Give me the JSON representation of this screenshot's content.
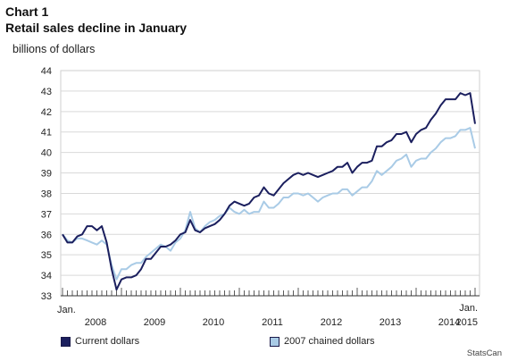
{
  "chart_data": {
    "type": "line",
    "title": "Chart 1",
    "subtitle": "Retail sales decline in January",
    "ylabel": "billions of dollars",
    "xlabel": "",
    "ylim": [
      33,
      44
    ],
    "yticks": [
      33,
      34,
      35,
      36,
      37,
      38,
      39,
      40,
      41,
      42,
      43,
      44
    ],
    "start_label": "Jan.",
    "end_label": "Jan.",
    "year_labels": [
      "2008",
      "2009",
      "2010",
      "2011",
      "2012",
      "2013",
      "2014",
      "2015"
    ],
    "grid": true,
    "legend_position": "bottom",
    "series": [
      {
        "name": "Current dollars",
        "color": "#1b1f5e",
        "values": [
          36.0,
          35.6,
          35.6,
          35.9,
          36.0,
          36.4,
          36.4,
          36.2,
          36.4,
          35.6,
          34.3,
          33.3,
          33.8,
          33.9,
          33.9,
          34.0,
          34.3,
          34.8,
          34.8,
          35.1,
          35.4,
          35.4,
          35.5,
          35.7,
          36.0,
          36.1,
          36.7,
          36.2,
          36.1,
          36.3,
          36.4,
          36.5,
          36.7,
          37.0,
          37.4,
          37.6,
          37.5,
          37.4,
          37.5,
          37.8,
          37.9,
          38.3,
          38.0,
          37.9,
          38.2,
          38.5,
          38.7,
          38.9,
          39.0,
          38.9,
          39.0,
          38.9,
          38.8,
          38.9,
          39.0,
          39.1,
          39.3,
          39.3,
          39.5,
          39.0,
          39.3,
          39.5,
          39.5,
          39.6,
          40.3,
          40.3,
          40.5,
          40.6,
          40.9,
          40.9,
          41.0,
          40.5,
          40.9,
          41.1,
          41.2,
          41.6,
          41.9,
          42.3,
          42.6,
          42.6,
          42.6,
          42.9,
          42.8,
          42.9,
          41.4
        ],
        "note": ""
      },
      {
        "name": "2007 chained dollars",
        "color": "#a9cbe6",
        "values": [
          36.0,
          35.7,
          35.6,
          35.8,
          35.8,
          35.7,
          35.6,
          35.5,
          35.7,
          35.5,
          34.5,
          33.8,
          34.3,
          34.3,
          34.5,
          34.6,
          34.6,
          34.9,
          35.1,
          35.3,
          35.5,
          35.4,
          35.2,
          35.6,
          35.8,
          36.2,
          37.1,
          36.3,
          36.1,
          36.4,
          36.6,
          36.7,
          36.9,
          37.0,
          37.3,
          37.1,
          37.0,
          37.2,
          37.0,
          37.1,
          37.1,
          37.6,
          37.3,
          37.3,
          37.5,
          37.8,
          37.8,
          38.0,
          38.0,
          37.9,
          38.0,
          37.8,
          37.6,
          37.8,
          37.9,
          38.0,
          38.0,
          38.2,
          38.2,
          37.9,
          38.1,
          38.3,
          38.3,
          38.6,
          39.1,
          38.9,
          39.1,
          39.3,
          39.6,
          39.7,
          39.9,
          39.3,
          39.6,
          39.7,
          39.7,
          40.0,
          40.2,
          40.5,
          40.7,
          40.7,
          40.8,
          41.1,
          41.1,
          41.2,
          40.2
        ]
      }
    ]
  },
  "credit": "StatsCan"
}
